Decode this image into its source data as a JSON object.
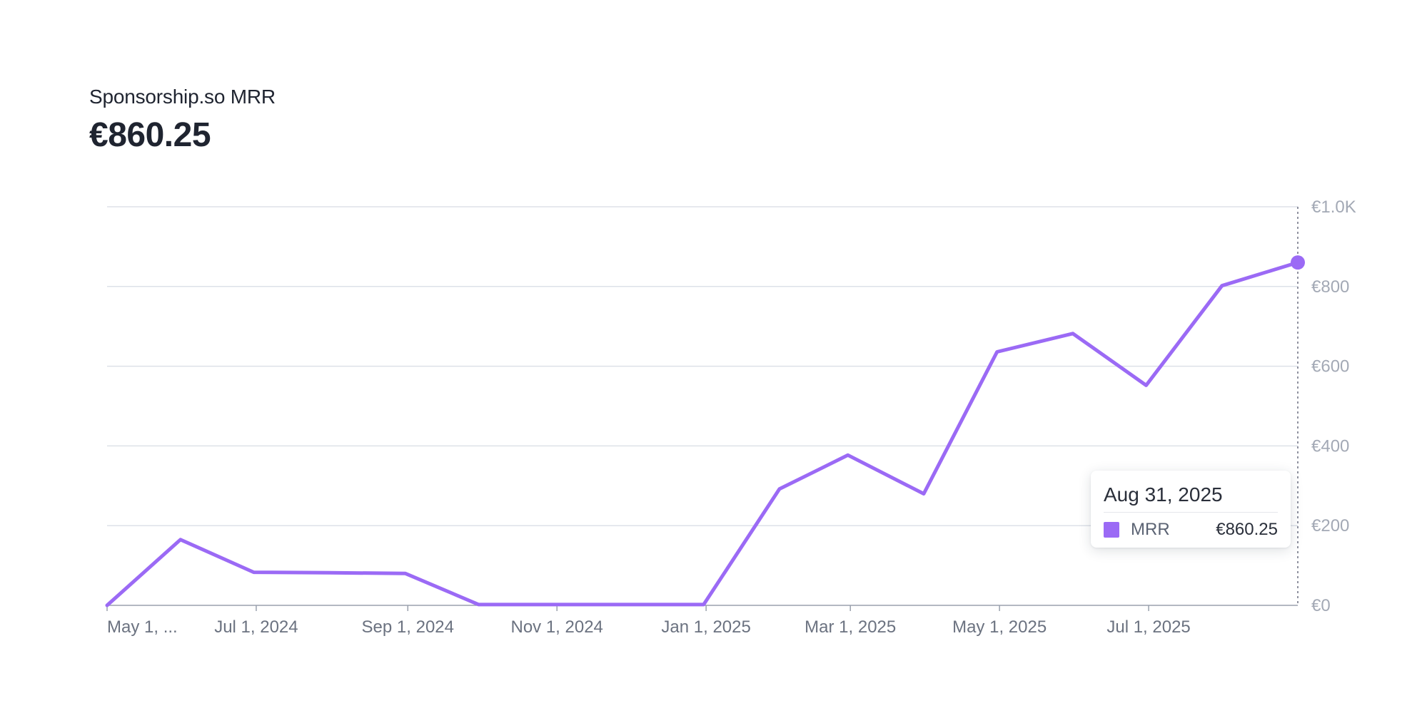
{
  "header": {
    "title": "Sponsorship.so MRR",
    "value": "€860.25"
  },
  "colors": {
    "line": "#9b6af5",
    "grid": "#dde1e8",
    "axis_text": "#6b7280",
    "y_axis_text": "#a3a9b5"
  },
  "tooltip": {
    "date": "Aug 31, 2025",
    "series_name": "MRR",
    "value": "€860.25"
  },
  "chart_data": {
    "type": "line",
    "title": "Sponsorship.so MRR",
    "xlabel": "",
    "ylabel": "",
    "ylim": [
      0,
      1000
    ],
    "y_ticks": [
      {
        "value": 0,
        "label": "€0"
      },
      {
        "value": 200,
        "label": "€200"
      },
      {
        "value": 400,
        "label": "€400"
      },
      {
        "value": 600,
        "label": "€600"
      },
      {
        "value": 800,
        "label": "€800"
      },
      {
        "value": 1000,
        "label": "€1.0K"
      }
    ],
    "x_ticks": [
      {
        "date": "2024-05-01",
        "label": "May 1, ..."
      },
      {
        "date": "2024-07-01",
        "label": "Jul 1, 2024"
      },
      {
        "date": "2024-09-01",
        "label": "Sep 1, 2024"
      },
      {
        "date": "2024-11-01",
        "label": "Nov 1, 2024"
      },
      {
        "date": "2025-01-01",
        "label": "Jan 1, 2025"
      },
      {
        "date": "2025-03-01",
        "label": "Mar 1, 2025"
      },
      {
        "date": "2025-05-01",
        "label": "May 1, 2025"
      },
      {
        "date": "2025-07-01",
        "label": "Jul 1, 2025"
      }
    ],
    "series": [
      {
        "name": "MRR",
        "points": [
          {
            "x": "2024-05-01",
            "y": 0
          },
          {
            "x": "2024-05-31",
            "y": 165
          },
          {
            "x": "2024-06-30",
            "y": 83
          },
          {
            "x": "2024-07-31",
            "y": 82
          },
          {
            "x": "2024-08-31",
            "y": 80
          },
          {
            "x": "2024-09-30",
            "y": 2
          },
          {
            "x": "2024-10-31",
            "y": 2
          },
          {
            "x": "2024-11-30",
            "y": 2
          },
          {
            "x": "2024-12-31",
            "y": 2
          },
          {
            "x": "2025-01-31",
            "y": 292
          },
          {
            "x": "2025-02-28",
            "y": 377
          },
          {
            "x": "2025-03-31",
            "y": 280
          },
          {
            "x": "2025-04-30",
            "y": 636
          },
          {
            "x": "2025-05-31",
            "y": 682
          },
          {
            "x": "2025-06-30",
            "y": 552
          },
          {
            "x": "2025-07-31",
            "y": 802
          },
          {
            "x": "2025-08-31",
            "y": 860.25
          }
        ]
      }
    ],
    "highlight": {
      "x": "2025-08-31",
      "y": 860.25
    },
    "grid": true,
    "legend": "none"
  }
}
